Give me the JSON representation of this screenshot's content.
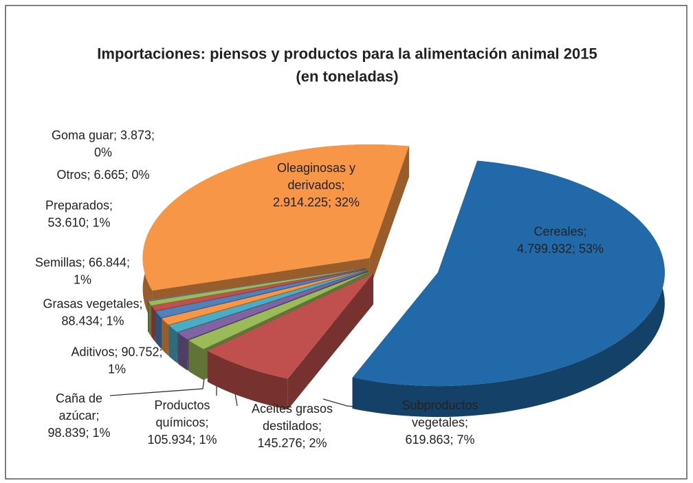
{
  "chart_data": {
    "type": "pie",
    "title": "Importaciones: piensos y productos para la alimentación animal 2015 (en toneladas)",
    "values": [
      4799932,
      619863,
      145276,
      105934,
      98839,
      90752,
      88434,
      66844,
      53610,
      6665,
      3873,
      2914225
    ],
    "value_labels": [
      "Cereales; 4.799.932; 53%",
      "Subproductos vegetales; 619.863; 7%",
      "Aceites grasos destilados; 145.276; 2%",
      "Productos químicos; 105.934; 1%",
      "Caña de azúcar; 98.839; 1%",
      "Aditivos; 90.752; 1%",
      "Grasas vegetales; 88.434; 1%",
      "Semillas; 66.844; 1%",
      "Preparados; 53.610; 1%",
      "Otros; 6.665; 0%",
      "Goma guar; 3.873; 0%",
      "Oleaginosas y derivados; 2.914.225; 32%"
    ],
    "colors": [
      "#2169a8",
      "#c0504d",
      "#9bbb59",
      "#8064a2",
      "#4bacc6",
      "#f79646",
      "#4f81bd",
      "#c0504d",
      "#9bbb59",
      "#8064a2",
      "#4bacc6",
      "#f79646"
    ]
  }
}
